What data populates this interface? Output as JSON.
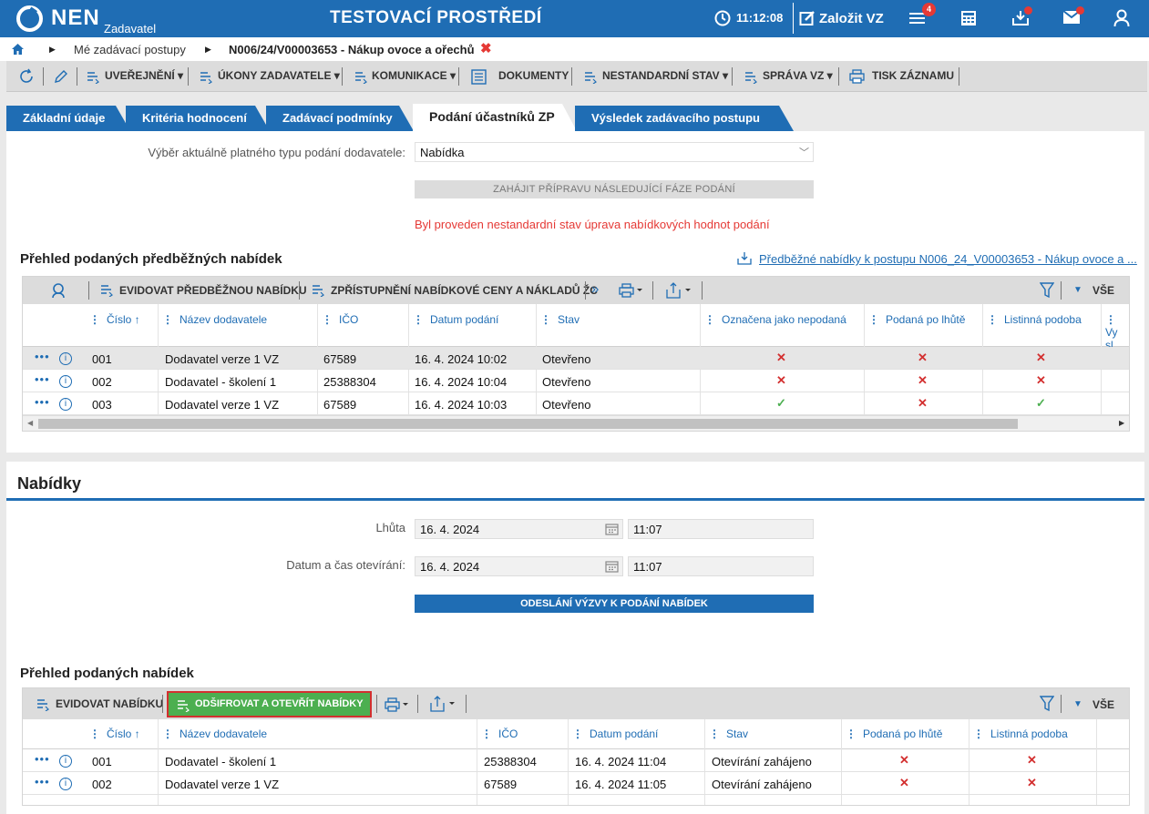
{
  "header": {
    "logo": "NEN",
    "logo_sub": "Zadavatel",
    "environment": "TESTOVACÍ PROSTŘEDÍ",
    "time": "11:12:08",
    "new_tender": "Založit VZ",
    "menu_badge": "4"
  },
  "breadcrumb": {
    "item1": "Mé zadávací postupy",
    "item2": "N006/24/V00003653 - Nákup ovoce a ořechů"
  },
  "toolbar": {
    "publish": "UVEŘEJNĚNÍ",
    "acts": "ÚKONY ZADAVATELE",
    "communication": "KOMUNIKACE",
    "documents": "DOKUMENTY",
    "nonstandard": "NESTANDARDNÍ STAV",
    "management": "SPRÁVA VZ",
    "print": "TISK ZÁZNAMU"
  },
  "tabs": [
    "Základní údaje",
    "Kritéria hodnocení",
    "Zadávací podmínky",
    "Podání účastníků ZP",
    "Výsledek zadávacího postupu"
  ],
  "submission": {
    "type_label": "Výběr aktuálně platného typu podání dodavatele:",
    "type_value": "Nabídka",
    "start_next_phase": "ZAHÁJIT PŘÍPRAVU NÁSLEDUJÍCÍ FÁZE PODÁNÍ",
    "warning": "Byl proveden nestandardní stav úprava nabídkových hodnot podání"
  },
  "preliminary": {
    "title": "Přehled podaných předběžných nabídek",
    "link": "Předběžné nabídky k postupu N006_24_V00003653 - Nákup ovoce a ...",
    "register_btn": "EVIDOVAT PŘEDBĚŽNOU NABÍDKU",
    "disclose_btn": "ZPŘÍSTUPNĚNÍ NABÍDKOVÉ CENY A NÁKLADŮ ŽC",
    "all": "VŠE",
    "columns": [
      "Číslo",
      "Název dodavatele",
      "IČO",
      "Datum podání",
      "Stav",
      "Označena jako nepodaná",
      "Podaná po lhůtě",
      "Listinná podoba",
      "Vy sl"
    ],
    "rows": [
      {
        "no": "001",
        "name": "Dodavatel verze 1 VZ",
        "ico": "67589",
        "date": "16. 4. 2024 10:02",
        "state": "Otevřeno",
        "not_submitted": "x",
        "late": "x",
        "paper": "x"
      },
      {
        "no": "002",
        "name": "Dodavatel - školení 1",
        "ico": "25388304",
        "date": "16. 4. 2024 10:04",
        "state": "Otevřeno",
        "not_submitted": "x",
        "late": "x",
        "paper": "x"
      },
      {
        "no": "003",
        "name": "Dodavatel verze 1 VZ",
        "ico": "67589",
        "date": "16. 4. 2024 10:03",
        "state": "Otevřeno",
        "not_submitted": "check",
        "late": "x",
        "paper": "check"
      }
    ]
  },
  "offers": {
    "title": "Nabídky",
    "deadline_label": "Lhůta",
    "deadline_date": "16. 4. 2024",
    "deadline_time": "11:07",
    "opening_label": "Datum a čas otevírání:",
    "opening_date": "16. 4. 2024",
    "opening_time": "11:07",
    "send_invite_btn": "ODESLÁNÍ VÝZVY K PODÁNÍ NABÍDEK"
  },
  "submitted": {
    "title": "Přehled podaných nabídek",
    "register_btn": "EVIDOVAT NABÍDKU",
    "decrypt_btn": "ODŠIFROVAT A OTEVŘÍT NABÍDKY",
    "all": "VŠE",
    "columns": [
      "Číslo",
      "Název dodavatele",
      "IČO",
      "Datum podání",
      "Stav",
      "Podaná po lhůtě",
      "Listinná podoba"
    ],
    "rows": [
      {
        "no": "001",
        "name": "Dodavatel - školení 1",
        "ico": "25388304",
        "date": "16. 4. 2024 11:04",
        "state": "Otevírání zahájeno"
      },
      {
        "no": "002",
        "name": "Dodavatel verze 1 VZ",
        "ico": "67589",
        "date": "16. 4. 2024 11:05",
        "state": "Otevírání zahájeno"
      }
    ]
  },
  "colors": {
    "brand": "#1f6db4",
    "danger": "#d32f2f",
    "success": "#4caf50",
    "green_btn": "#4caf50"
  }
}
